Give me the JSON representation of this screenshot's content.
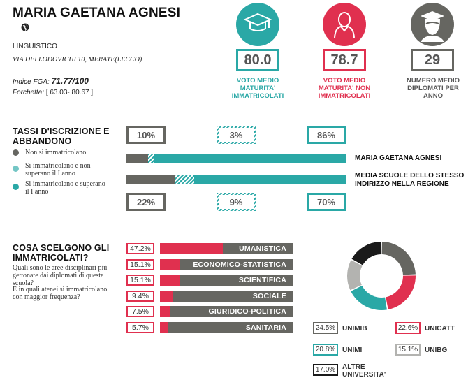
{
  "school": {
    "name": "MARIA GAETANA AGNESI",
    "type": "LINGUISTICO",
    "address": "VIA DEI LODOVICHI 10, MERATE(LECCO)",
    "fga_label": "Indice FGA:",
    "fga_value": "71.77/100",
    "forchetta_label": "Forchetta:",
    "forchetta_value": "[ 63.03- 80.67 ]"
  },
  "stats": [
    {
      "value": "80.0",
      "label": "VOTO MEDIO MATURITA' IMMATRICOLATI",
      "color": "#2aa8a6",
      "icon": "graduation-cap-icon"
    },
    {
      "value": "78.7",
      "label": "VOTO MEDIO MATURITA' NON IMMATRICOLATI",
      "color": "#e0304f",
      "icon": "person-icon"
    },
    {
      "value": "29",
      "label": "NUMERO MEDIO DIPLOMATI PER ANNO",
      "color": "#666661",
      "icon": "graduate-icon"
    }
  ],
  "iscrizione": {
    "title": "TASSI D'ISCRIZIONE E ABBANDONO",
    "legend": [
      {
        "label": "Non si immatricolano",
        "color": "#666661"
      },
      {
        "label": "Si immatricolano e non superano il I anno",
        "color": "#2aa8a6"
      },
      {
        "label": "Si immatricolano e superano il I anno",
        "color": "#2aa8a6"
      }
    ],
    "school_top": [
      "10%",
      "3%",
      "86%"
    ],
    "region_bottom": [
      "22%",
      "9%",
      "70%"
    ],
    "school_fracs": [
      0.1,
      0.03,
      0.86
    ],
    "region_fracs": [
      0.22,
      0.09,
      0.7
    ],
    "school_label": "MARIA GAETANA AGNESI",
    "region_label": "MEDIA SCUOLE DELLO STESSO INDIRIZZO NELLA REGIONE"
  },
  "scelte": {
    "title": "COSA SCELGONO GLI IMMATRICOLATI?",
    "question1": "Quali sono le aree disciplinari più gettonate dai diplomati di questa scuola?",
    "question2": "E in quali atenei si immatricolano con maggior frequenza?",
    "subjects": [
      {
        "pct": "47.2%",
        "value": 47.2,
        "label": "UMANISTICA"
      },
      {
        "pct": "15.1%",
        "value": 15.1,
        "label": "ECONOMICO-STATISTICA"
      },
      {
        "pct": "15.1%",
        "value": 15.1,
        "label": "SCIENTIFICA"
      },
      {
        "pct": "9.4%",
        "value": 9.4,
        "label": "SOCIALE"
      },
      {
        "pct": "7.5%",
        "value": 7.5,
        "label": "GIURIDICO-POLITICA"
      },
      {
        "pct": "5.7%",
        "value": 5.7,
        "label": "SANITARIA"
      }
    ],
    "universities": [
      {
        "pct": "24.5%",
        "value": 24.5,
        "name": "UNIMIB",
        "color": "#666661"
      },
      {
        "pct": "22.6%",
        "value": 22.6,
        "name": "UNICATT",
        "color": "#e0304f"
      },
      {
        "pct": "20.8%",
        "value": 20.8,
        "name": "UNIMI",
        "color": "#2aa8a6"
      },
      {
        "pct": "15.1%",
        "value": 15.1,
        "name": "UNIBG",
        "color": "#b3b3b0"
      },
      {
        "pct": "17.0%",
        "value": 17.0,
        "name": "ALTRE UNIVERSITA'",
        "color": "#1a1a1a"
      }
    ]
  }
}
